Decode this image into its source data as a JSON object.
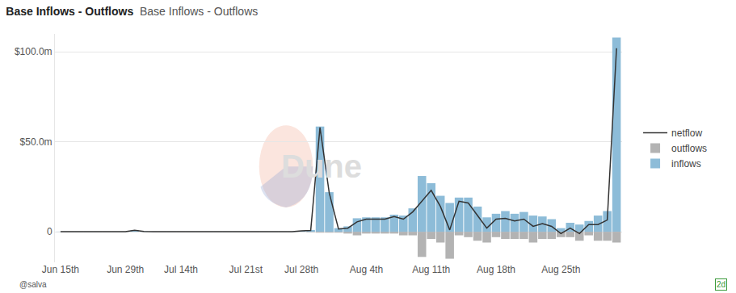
{
  "chart_data": {
    "type": "bar",
    "title": "Base Inflows - Outflows",
    "subtitle": "Base Inflows - Outflows",
    "annotations": [
      "Dune",
      "@salva",
      "2d"
    ],
    "categories": [
      "Jun 15th",
      null,
      null,
      null,
      null,
      null,
      null,
      "Jun 29th",
      null,
      null,
      null,
      null,
      null,
      "Jul 14th",
      null,
      null,
      null,
      null,
      null,
      null,
      "Jul 21st",
      null,
      null,
      null,
      null,
      null,
      "Jul 28th",
      null,
      null,
      null,
      null,
      null,
      null,
      "Aug 4th",
      null,
      null,
      null,
      null,
      null,
      null,
      "Aug 11th",
      null,
      null,
      null,
      null,
      null,
      null,
      "Aug 18th",
      null,
      null,
      null,
      null,
      null,
      null,
      "Aug 25th",
      null,
      null,
      null,
      null,
      null,
      null
    ],
    "series": [
      {
        "name": "netflow",
        "type": "line",
        "color": "#333333",
        "values": [
          0.1,
          0.1,
          0.1,
          0.1,
          0.1,
          0.1,
          0.1,
          0.1,
          0.8,
          0.2,
          0.1,
          0.1,
          0.1,
          0.1,
          0.1,
          0.1,
          0.1,
          0.1,
          0.1,
          0.1,
          0.1,
          0.1,
          0.1,
          0.1,
          0.1,
          0.1,
          0.5,
          0.7,
          58,
          21.5,
          1.5,
          2,
          5.5,
          7,
          7,
          7,
          8.5,
          7,
          11,
          17,
          23,
          14,
          1,
          17,
          16,
          9,
          2,
          7,
          7.5,
          6,
          7,
          3,
          4.5,
          3,
          -1,
          2,
          -1,
          4,
          4,
          6.5,
          102
        ]
      },
      {
        "name": "outflows",
        "type": "bar",
        "color": "#b3b3b3",
        "values": [
          0,
          0,
          0,
          0,
          0,
          0,
          0,
          0,
          0,
          0,
          0,
          0,
          0,
          0,
          0,
          0,
          0,
          0,
          0,
          0,
          0,
          0,
          0,
          0,
          0,
          0,
          0,
          -0.3,
          -0.5,
          -0.5,
          -0.5,
          -1,
          -2,
          -1,
          -1,
          -1,
          -1,
          -2,
          -2,
          -14,
          -4,
          -6,
          -15,
          -2,
          -3,
          -5,
          -6,
          -3,
          -4,
          -4,
          -4,
          -6,
          -4,
          -4,
          -3,
          -3,
          -5,
          -2,
          -5,
          -5,
          -6
        ]
      },
      {
        "name": "inflows",
        "type": "bar",
        "color": "#8dbcd8",
        "values": [
          0.1,
          0.1,
          0.1,
          0.1,
          0.1,
          0.1,
          0.1,
          0.1,
          0.8,
          0.2,
          0.1,
          0.1,
          0.1,
          0.1,
          0.1,
          0.1,
          0.1,
          0.1,
          0.1,
          0.1,
          0.1,
          0.1,
          0.1,
          0.1,
          0.1,
          0.1,
          0.5,
          1,
          58.5,
          22,
          2,
          3,
          7.5,
          8,
          8,
          8,
          9.5,
          9,
          13,
          31,
          27,
          20,
          16,
          19,
          19,
          14,
          8,
          10,
          11.5,
          10,
          11,
          9,
          8.5,
          7,
          2,
          5,
          4,
          6,
          9,
          11.5,
          108
        ]
      }
    ],
    "ylim": [
      -17,
      110
    ],
    "yticks": [
      0,
      {
        "value": 50,
        "label": "$50.0m"
      },
      {
        "value": 100,
        "label": "$100.0m"
      }
    ],
    "stacked": true,
    "grid": true,
    "legend": "right"
  }
}
